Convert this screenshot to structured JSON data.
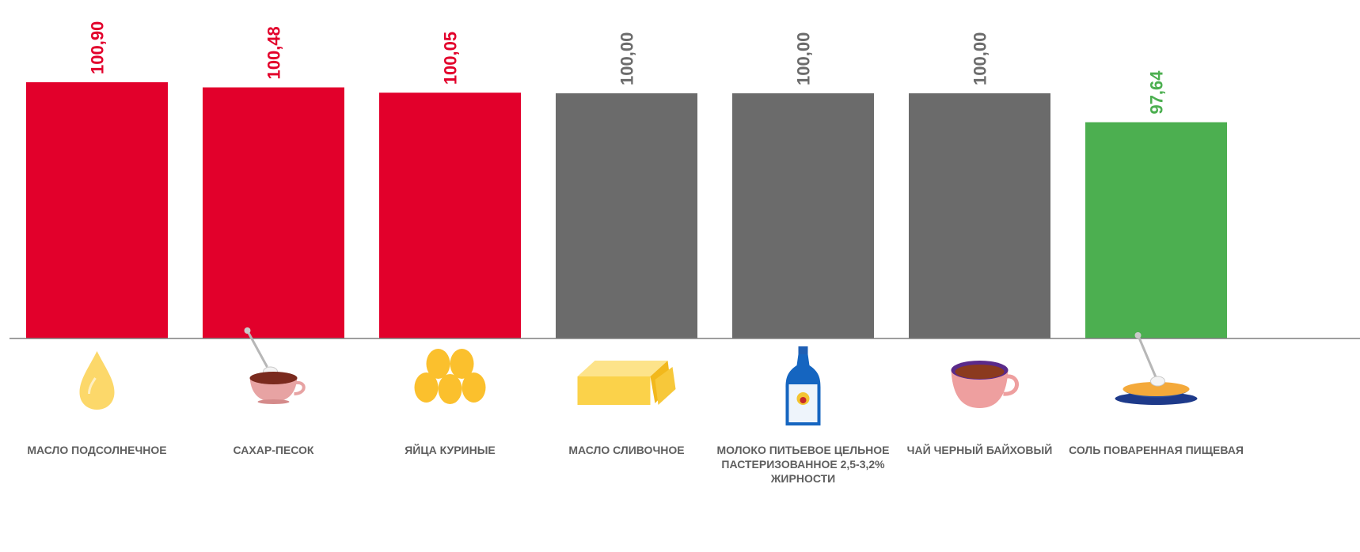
{
  "chart_data": {
    "type": "bar",
    "categories": [
      "МАСЛО ПОДСОЛНЕЧНОЕ",
      "САХАР-ПЕСОК",
      "ЯЙЦА КУРИНЫЕ",
      "МАСЛО СЛИВОЧНОЕ",
      "МОЛОКО ПИТЬЕВОЕ ЦЕЛЬНОЕ ПАСТЕРИЗОВАННОЕ 2,5-3,2% ЖИРНОСТИ",
      "ЧАЙ ЧЕРНЫЙ БАЙХОВЫЙ",
      "СОЛЬ ПОВАРЕННАЯ ПИЩЕВАЯ"
    ],
    "values": [
      100.9,
      100.48,
      100.05,
      100.0,
      100.0,
      100.0,
      97.64
    ],
    "value_labels": [
      "100,90",
      "100,48",
      "100,05",
      "100,00",
      "100,00",
      "100,00",
      "97,64"
    ],
    "bar_colors": [
      "#e2002b",
      "#e2002b",
      "#e2002b",
      "#6b6b6b",
      "#6b6b6b",
      "#6b6b6b",
      "#4caf50"
    ],
    "label_colors": [
      "#e2002b",
      "#e2002b",
      "#e2002b",
      "#6b6b6b",
      "#6b6b6b",
      "#6b6b6b",
      "#4caf50"
    ],
    "icons": [
      "oil-drop-icon",
      "sugar-cup-icon",
      "eggs-icon",
      "butter-icon",
      "milk-bottle-icon",
      "tea-cup-icon",
      "salt-bowl-icon"
    ],
    "title": "",
    "xlabel": "",
    "ylabel": "",
    "ylim": [
      80,
      102
    ],
    "grid": false,
    "legend": "none"
  }
}
